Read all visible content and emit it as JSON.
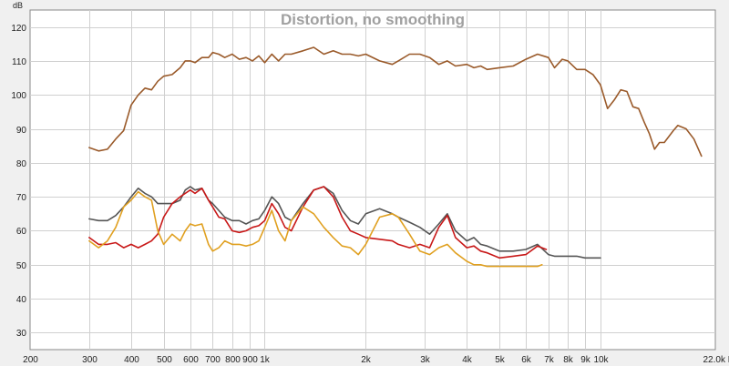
{
  "chart_data": {
    "type": "line",
    "title": "Distortion, no smoothing",
    "ylabel": "dB",
    "xlabel": "Hz",
    "xscale": "log",
    "xlim": [
      200,
      22000
    ],
    "ylim": [
      25,
      125
    ],
    "grid": true,
    "x_ticks": [
      200,
      300,
      400,
      500,
      600,
      700,
      800,
      900,
      1000,
      2000,
      3000,
      4000,
      5000,
      6000,
      7000,
      8000,
      9000,
      10000,
      22000
    ],
    "x_tick_labels": [
      "200",
      "300",
      "400",
      "500",
      "600",
      "700",
      "800",
      "900",
      "1k",
      "2k",
      "3k",
      "4k",
      "5k",
      "6k",
      "7k",
      "8k",
      "9k",
      "10k",
      "22.0k Hz"
    ],
    "y_ticks": [
      30,
      40,
      50,
      60,
      70,
      80,
      90,
      100,
      110,
      120
    ],
    "y_tick_labels": [
      "30",
      "40",
      "50",
      "60",
      "70",
      "80",
      "90",
      "100",
      "110",
      "120"
    ],
    "series": [
      {
        "color": "#9a5a2a",
        "points": [
          [
            300,
            84.5
          ],
          [
            320,
            83.5
          ],
          [
            340,
            84
          ],
          [
            360,
            87
          ],
          [
            380,
            89.5
          ],
          [
            400,
            97
          ],
          [
            420,
            100
          ],
          [
            440,
            102
          ],
          [
            460,
            101.5
          ],
          [
            480,
            104
          ],
          [
            500,
            105.5
          ],
          [
            530,
            106
          ],
          [
            560,
            108
          ],
          [
            580,
            110
          ],
          [
            600,
            110
          ],
          [
            620,
            109.5
          ],
          [
            650,
            111
          ],
          [
            680,
            111
          ],
          [
            700,
            112.5
          ],
          [
            730,
            112
          ],
          [
            760,
            111
          ],
          [
            800,
            112
          ],
          [
            840,
            110.5
          ],
          [
            880,
            111
          ],
          [
            920,
            110
          ],
          [
            960,
            111.5
          ],
          [
            1000,
            109.5
          ],
          [
            1050,
            112
          ],
          [
            1100,
            110
          ],
          [
            1150,
            112
          ],
          [
            1200,
            112
          ],
          [
            1300,
            113
          ],
          [
            1400,
            114
          ],
          [
            1500,
            112
          ],
          [
            1600,
            113
          ],
          [
            1700,
            112
          ],
          [
            1800,
            112
          ],
          [
            1900,
            111.5
          ],
          [
            2000,
            112
          ],
          [
            2200,
            110
          ],
          [
            2400,
            109
          ],
          [
            2500,
            110
          ],
          [
            2700,
            112
          ],
          [
            2900,
            112
          ],
          [
            3100,
            111
          ],
          [
            3300,
            109
          ],
          [
            3500,
            110
          ],
          [
            3700,
            108.5
          ],
          [
            4000,
            109
          ],
          [
            4200,
            108
          ],
          [
            4400,
            108.5
          ],
          [
            4600,
            107.5
          ],
          [
            5000,
            108
          ],
          [
            5500,
            108.5
          ],
          [
            6000,
            110.5
          ],
          [
            6500,
            112
          ],
          [
            7000,
            111
          ],
          [
            7300,
            108
          ],
          [
            7700,
            110.5
          ],
          [
            8000,
            110
          ],
          [
            8500,
            107.5
          ],
          [
            9000,
            107.5
          ],
          [
            9500,
            106
          ],
          [
            10000,
            103
          ],
          [
            10500,
            96
          ],
          [
            11000,
            98.5
          ],
          [
            11500,
            101.5
          ],
          [
            12000,
            101
          ],
          [
            12500,
            96.5
          ],
          [
            13000,
            96
          ],
          [
            13500,
            92
          ],
          [
            14000,
            88.5
          ],
          [
            14500,
            84
          ],
          [
            15000,
            86
          ],
          [
            15500,
            86
          ],
          [
            16500,
            89.5
          ],
          [
            17000,
            91
          ],
          [
            18000,
            90
          ],
          [
            19000,
            87
          ],
          [
            20000,
            82
          ]
        ]
      },
      {
        "color": "#555555",
        "points": [
          [
            300,
            63.5
          ],
          [
            320,
            63
          ],
          [
            340,
            63
          ],
          [
            360,
            64.5
          ],
          [
            380,
            67
          ],
          [
            400,
            70
          ],
          [
            420,
            72.5
          ],
          [
            440,
            71
          ],
          [
            460,
            70
          ],
          [
            480,
            68
          ],
          [
            500,
            68
          ],
          [
            530,
            68
          ],
          [
            560,
            69
          ],
          [
            580,
            72
          ],
          [
            600,
            73
          ],
          [
            620,
            72
          ],
          [
            650,
            72.5
          ],
          [
            680,
            69
          ],
          [
            700,
            68
          ],
          [
            730,
            66
          ],
          [
            760,
            64
          ],
          [
            800,
            63
          ],
          [
            840,
            63
          ],
          [
            880,
            62
          ],
          [
            920,
            63
          ],
          [
            960,
            63.5
          ],
          [
            1000,
            66
          ],
          [
            1050,
            70
          ],
          [
            1100,
            68
          ],
          [
            1150,
            64
          ],
          [
            1200,
            63
          ],
          [
            1300,
            68
          ],
          [
            1400,
            72
          ],
          [
            1500,
            73
          ],
          [
            1600,
            71
          ],
          [
            1700,
            66
          ],
          [
            1800,
            63
          ],
          [
            1900,
            62
          ],
          [
            2000,
            65
          ],
          [
            2200,
            66.5
          ],
          [
            2400,
            65
          ],
          [
            2500,
            64
          ],
          [
            2700,
            62.5
          ],
          [
            2900,
            61
          ],
          [
            3100,
            59
          ],
          [
            3300,
            62
          ],
          [
            3500,
            65
          ],
          [
            3700,
            60
          ],
          [
            4000,
            57
          ],
          [
            4200,
            58
          ],
          [
            4400,
            56
          ],
          [
            4600,
            55.5
          ],
          [
            5000,
            54
          ],
          [
            5500,
            54
          ],
          [
            6000,
            54.5
          ],
          [
            6500,
            56
          ],
          [
            7000,
            53
          ],
          [
            7300,
            52.5
          ],
          [
            7700,
            52.5
          ],
          [
            8000,
            52.5
          ],
          [
            8500,
            52.5
          ],
          [
            9000,
            52
          ],
          [
            9500,
            52
          ],
          [
            10000,
            52
          ]
        ]
      },
      {
        "color": "#c81818",
        "points": [
          [
            300,
            58
          ],
          [
            320,
            56
          ],
          [
            340,
            56
          ],
          [
            360,
            56.5
          ],
          [
            380,
            55
          ],
          [
            400,
            56
          ],
          [
            420,
            55
          ],
          [
            440,
            56
          ],
          [
            460,
            57
          ],
          [
            480,
            59
          ],
          [
            500,
            64
          ],
          [
            530,
            68
          ],
          [
            560,
            70
          ],
          [
            580,
            71
          ],
          [
            600,
            72
          ],
          [
            620,
            71
          ],
          [
            650,
            72.5
          ],
          [
            680,
            69
          ],
          [
            700,
            67
          ],
          [
            730,
            64
          ],
          [
            760,
            63.5
          ],
          [
            800,
            60
          ],
          [
            840,
            59.5
          ],
          [
            880,
            60
          ],
          [
            920,
            61
          ],
          [
            960,
            61.5
          ],
          [
            1000,
            63
          ],
          [
            1050,
            68
          ],
          [
            1100,
            65
          ],
          [
            1150,
            61
          ],
          [
            1200,
            60
          ],
          [
            1300,
            67
          ],
          [
            1400,
            72
          ],
          [
            1500,
            73
          ],
          [
            1600,
            70
          ],
          [
            1700,
            64
          ],
          [
            1800,
            60
          ],
          [
            1900,
            59
          ],
          [
            2000,
            58
          ],
          [
            2200,
            57.5
          ],
          [
            2400,
            57
          ],
          [
            2500,
            56
          ],
          [
            2700,
            55
          ],
          [
            2900,
            56
          ],
          [
            3100,
            55
          ],
          [
            3300,
            61
          ],
          [
            3500,
            64.5
          ],
          [
            3700,
            58
          ],
          [
            4000,
            55
          ],
          [
            4200,
            55.5
          ],
          [
            4400,
            54
          ],
          [
            4600,
            53.5
          ],
          [
            5000,
            52
          ],
          [
            5500,
            52.5
          ],
          [
            6000,
            53
          ],
          [
            6500,
            55.5
          ],
          [
            6900,
            54.5
          ]
        ]
      },
      {
        "color": "#e0a020",
        "points": [
          [
            300,
            57
          ],
          [
            320,
            55
          ],
          [
            340,
            57
          ],
          [
            360,
            61
          ],
          [
            380,
            67
          ],
          [
            400,
            69
          ],
          [
            420,
            71.5
          ],
          [
            440,
            70
          ],
          [
            460,
            69
          ],
          [
            480,
            60
          ],
          [
            500,
            56
          ],
          [
            530,
            59
          ],
          [
            560,
            57
          ],
          [
            580,
            60
          ],
          [
            600,
            62
          ],
          [
            620,
            61.5
          ],
          [
            650,
            62
          ],
          [
            680,
            56
          ],
          [
            700,
            54
          ],
          [
            730,
            55
          ],
          [
            760,
            57
          ],
          [
            800,
            56
          ],
          [
            840,
            56
          ],
          [
            880,
            55.5
          ],
          [
            920,
            56
          ],
          [
            960,
            57
          ],
          [
            1000,
            61
          ],
          [
            1050,
            66
          ],
          [
            1100,
            60
          ],
          [
            1150,
            57
          ],
          [
            1200,
            63
          ],
          [
            1300,
            67
          ],
          [
            1400,
            65
          ],
          [
            1500,
            61
          ],
          [
            1600,
            58
          ],
          [
            1700,
            55.5
          ],
          [
            1800,
            55
          ],
          [
            1900,
            53
          ],
          [
            2000,
            56
          ],
          [
            2200,
            64
          ],
          [
            2400,
            65
          ],
          [
            2500,
            64
          ],
          [
            2700,
            59
          ],
          [
            2900,
            54
          ],
          [
            3100,
            53
          ],
          [
            3300,
            55
          ],
          [
            3500,
            56
          ],
          [
            3700,
            53.5
          ],
          [
            4000,
            51
          ],
          [
            4200,
            50
          ],
          [
            4400,
            50
          ],
          [
            4600,
            49.5
          ],
          [
            5000,
            49.5
          ],
          [
            5500,
            49.5
          ],
          [
            6000,
            49.5
          ],
          [
            6500,
            49.5
          ],
          [
            6700,
            50
          ]
        ]
      }
    ]
  }
}
